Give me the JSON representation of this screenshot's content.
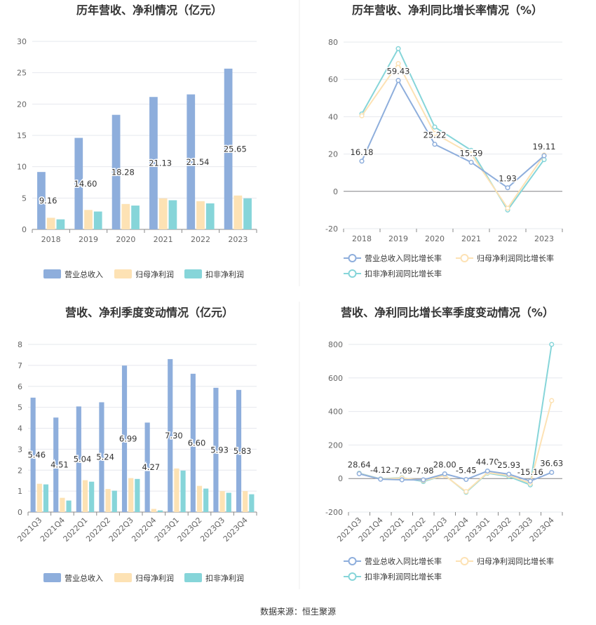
{
  "colors": {
    "revenue": "#8eaedc",
    "net_profit": "#fde2b4",
    "deducted_profit": "#86d5d9",
    "revenue_line": "#8eaedc",
    "net_line": "#fde2b4",
    "deducted_line": "#86d5d9",
    "grid": "#e6e8ee",
    "axis": "#888888"
  },
  "source": "数据来源：恒生聚源",
  "chart_data": [
    {
      "id": "annual_values",
      "type": "bar",
      "title": "历年营收、净利情况（亿元）",
      "categories": [
        "2018",
        "2019",
        "2020",
        "2021",
        "2022",
        "2023"
      ],
      "series": [
        {
          "name": "营业总收入",
          "values": [
            9.16,
            14.6,
            18.28,
            21.13,
            21.54,
            25.65
          ],
          "labels": [
            "9.16",
            "14.60",
            "18.28",
            "21.13",
            "21.54",
            "25.65"
          ],
          "color_key": "revenue"
        },
        {
          "name": "归母净利润",
          "values": [
            1.85,
            3.1,
            4.05,
            4.95,
            4.5,
            5.4
          ],
          "color_key": "net_profit"
        },
        {
          "name": "扣非净利润",
          "values": [
            1.6,
            2.85,
            3.8,
            4.65,
            4.15,
            4.95
          ],
          "color_key": "deducted_profit"
        }
      ],
      "ylim": [
        0,
        30
      ],
      "yticks": [
        0,
        5,
        10,
        15,
        20,
        25,
        30
      ],
      "legend": "bottom"
    },
    {
      "id": "annual_growth",
      "type": "line",
      "title": "历年营收、净利同比增长率情况（%）",
      "categories": [
        "2018",
        "2019",
        "2020",
        "2021",
        "2022",
        "2023"
      ],
      "series": [
        {
          "name": "营业总收入同比增长率",
          "values": [
            16.18,
            59.43,
            25.22,
            15.59,
            1.93,
            19.11
          ],
          "labels": [
            "16.18",
            "59.43",
            "25.22",
            "15.59",
            "1.93",
            "19.11"
          ],
          "color_key": "revenue_line"
        },
        {
          "name": "归母净利润同比增长率",
          "values": [
            40.5,
            68.5,
            31.0,
            20.0,
            -9.0,
            19.5
          ],
          "color_key": "net_line"
        },
        {
          "name": "扣非净利润同比增长率",
          "values": [
            41.5,
            76.5,
            34.5,
            22.0,
            -10.0,
            17.0
          ],
          "color_key": "deducted_line"
        }
      ],
      "ylim": [
        -20,
        80
      ],
      "yticks": [
        -20,
        0,
        20,
        40,
        60,
        80
      ],
      "legend": "bottom"
    },
    {
      "id": "quarterly_values",
      "type": "bar",
      "title": "营收、净利季度变动情况（亿元）",
      "categories": [
        "2021Q3",
        "2021Q4",
        "2022Q1",
        "2022Q2",
        "2022Q3",
        "2022Q4",
        "2023Q1",
        "2023Q2",
        "2023Q3",
        "2023Q4"
      ],
      "series": [
        {
          "name": "营业总收入",
          "values": [
            5.46,
            4.51,
            5.04,
            5.24,
            6.99,
            4.27,
            7.3,
            6.6,
            5.93,
            5.83
          ],
          "labels": [
            "5.46",
            "4.51",
            "5.04",
            "5.24",
            "6.99",
            "4.27",
            "7.30",
            "6.60",
            "5.93",
            "5.83"
          ],
          "color_key": "revenue"
        },
        {
          "name": "归母净利润",
          "values": [
            1.35,
            0.68,
            1.52,
            1.1,
            1.62,
            0.15,
            2.08,
            1.25,
            1.0,
            1.0
          ],
          "color_key": "net_profit"
        },
        {
          "name": "扣非净利润",
          "values": [
            1.32,
            0.55,
            1.45,
            1.02,
            1.58,
            0.08,
            1.98,
            1.12,
            0.92,
            0.85
          ],
          "color_key": "deducted_profit"
        }
      ],
      "ylim": [
        0,
        8
      ],
      "yticks": [
        0,
        1,
        2,
        3,
        4,
        5,
        6,
        7,
        8
      ],
      "legend": "bottom"
    },
    {
      "id": "quarterly_growth",
      "type": "line",
      "title": "营收、净利同比增长率季度变动情况（%）",
      "categories": [
        "2021Q3",
        "2021Q4",
        "2022Q1",
        "2022Q2",
        "2022Q3",
        "2022Q4",
        "2023Q1",
        "2023Q2",
        "2023Q3",
        "2023Q4"
      ],
      "series": [
        {
          "name": "营业总收入同比增长率",
          "values": [
            28.64,
            -4.12,
            -7.69,
            -7.98,
            28.0,
            -5.45,
            44.7,
            25.93,
            -15.16,
            36.63
          ],
          "labels": [
            "28.64",
            "-4.12",
            "-7.69",
            "-7.98",
            "28.00",
            "-5.45",
            "44.70",
            "25.93",
            "-15.16",
            "36.63"
          ],
          "color_key": "revenue_line"
        },
        {
          "name": "归母净利润同比增长率",
          "values": [
            30,
            -3,
            3,
            -12,
            18,
            -78,
            35,
            18,
            -28,
            465
          ],
          "color_key": "net_line"
        },
        {
          "name": "扣非净利润同比增长率",
          "values": [
            32,
            -2,
            5,
            -18,
            20,
            -82,
            32,
            12,
            -38,
            800
          ],
          "color_key": "deducted_line"
        }
      ],
      "ylim": [
        -200,
        800
      ],
      "yticks": [
        -200,
        0,
        200,
        400,
        600,
        800
      ],
      "legend": "bottom"
    }
  ]
}
